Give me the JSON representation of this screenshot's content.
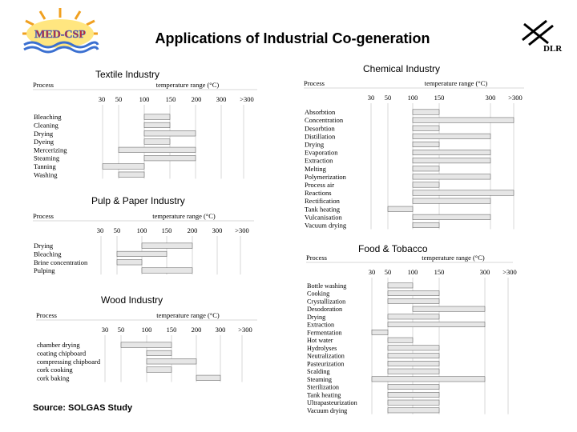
{
  "title": "Applications of Industrial Co-generation",
  "source": "Source: SOLGAS Study",
  "logos": {
    "left": "MED-CSP",
    "right": "DLR"
  },
  "colors": {
    "bar_fill": "#e6e6e6",
    "bar_stroke": "#555555",
    "grid": "#b0b0b0",
    "logo_red": "#d62020",
    "logo_blue": "#3a6fd0",
    "logo_orange": "#f0a020"
  },
  "charts": [
    {
      "id": "textile",
      "title": "Textile Industry",
      "process_label": "Process",
      "range_label": "temperature range (°C)",
      "ticks": [
        "30",
        "50",
        "100",
        "150",
        "200",
        "300",
        ">300"
      ],
      "processes": [
        "Bleaching",
        "Cleaning",
        "Drying",
        "Dyeing",
        "Mercerizing",
        "Steaming",
        "Tanning",
        "Washing"
      ],
      "ranges": [
        [
          100,
          150
        ],
        [
          100,
          150
        ],
        [
          100,
          200
        ],
        [
          100,
          150
        ],
        [
          50,
          200
        ],
        [
          100,
          200
        ],
        [
          30,
          100
        ],
        [
          50,
          100
        ]
      ]
    },
    {
      "id": "pulp",
      "title": "Pulp & Paper Industry",
      "process_label": "Process",
      "range_label": "temperature range (°C)",
      "ticks": [
        "30",
        "50",
        "100",
        "150",
        "200",
        "300",
        ">300"
      ],
      "processes": [
        "Drying",
        "Bleaching",
        "Brine concentration",
        "Pulping"
      ],
      "ranges": [
        [
          100,
          200
        ],
        [
          50,
          150
        ],
        [
          50,
          100
        ],
        [
          100,
          200
        ]
      ]
    },
    {
      "id": "wood",
      "title": "Wood Industry",
      "process_label": "Process",
      "range_label": "temperature range (°C)",
      "ticks": [
        "30",
        "50",
        "100",
        "150",
        "200",
        "300",
        ">300"
      ],
      "processes": [
        "chamber drying",
        "coating chipboard",
        "compressing chipboard",
        "cork cooking",
        "cork baking"
      ],
      "ranges": [
        [
          50,
          150
        ],
        [
          100,
          150
        ],
        [
          100,
          200
        ],
        [
          100,
          150
        ],
        [
          200,
          300
        ]
      ]
    },
    {
      "id": "chemical",
      "title": "Chemical Industry",
      "process_label": "Process",
      "range_label": "temperature range (°C)",
      "ticks": [
        "30",
        "50",
        "100",
        "150",
        "300",
        ">300"
      ],
      "processes": [
        "Absorbtion",
        "Concentration",
        "Desorbtion",
        "Distillation",
        "Drying",
        "Evaporation",
        "Extraction",
        "Melting",
        "Polymerization",
        "Process air",
        "Reactions",
        "Rectification",
        "Tank heating",
        "Vulcanisation",
        "Vacuum drying"
      ],
      "ranges": [
        [
          100,
          150
        ],
        [
          100,
          ">300"
        ],
        [
          100,
          150
        ],
        [
          100,
          300
        ],
        [
          100,
          150
        ],
        [
          100,
          300
        ],
        [
          100,
          300
        ],
        [
          100,
          150
        ],
        [
          100,
          300
        ],
        [
          100,
          150
        ],
        [
          100,
          ">300"
        ],
        [
          100,
          300
        ],
        [
          50,
          100
        ],
        [
          100,
          300
        ],
        [
          100,
          150
        ]
      ]
    },
    {
      "id": "food",
      "title": "Food & Tobacco",
      "process_label": "Process",
      "range_label": "temperature range (°C)",
      "ticks": [
        "30",
        "50",
        "100",
        "150",
        "300",
        ">300"
      ],
      "processes": [
        "Bottle washing",
        "Cooking",
        "Crystallization",
        "Desodoration",
        "Drying",
        "Extraction",
        "Fermentation",
        "Hot water",
        "Hydrolyses",
        "Neutralization",
        "Pasteurization",
        "Scalding",
        "Steaming",
        "Sterilization",
        "Tank heating",
        "Ultrapasteurization",
        "Vacuum drying"
      ],
      "ranges": [
        [
          50,
          100
        ],
        [
          50,
          150
        ],
        [
          50,
          150
        ],
        [
          100,
          300
        ],
        [
          50,
          150
        ],
        [
          50,
          300
        ],
        [
          30,
          50
        ],
        [
          50,
          100
        ],
        [
          50,
          150
        ],
        [
          50,
          150
        ],
        [
          50,
          150
        ],
        [
          50,
          150
        ],
        [
          30,
          300
        ],
        [
          50,
          150
        ],
        [
          50,
          150
        ],
        [
          50,
          150
        ],
        [
          50,
          150
        ]
      ]
    }
  ]
}
